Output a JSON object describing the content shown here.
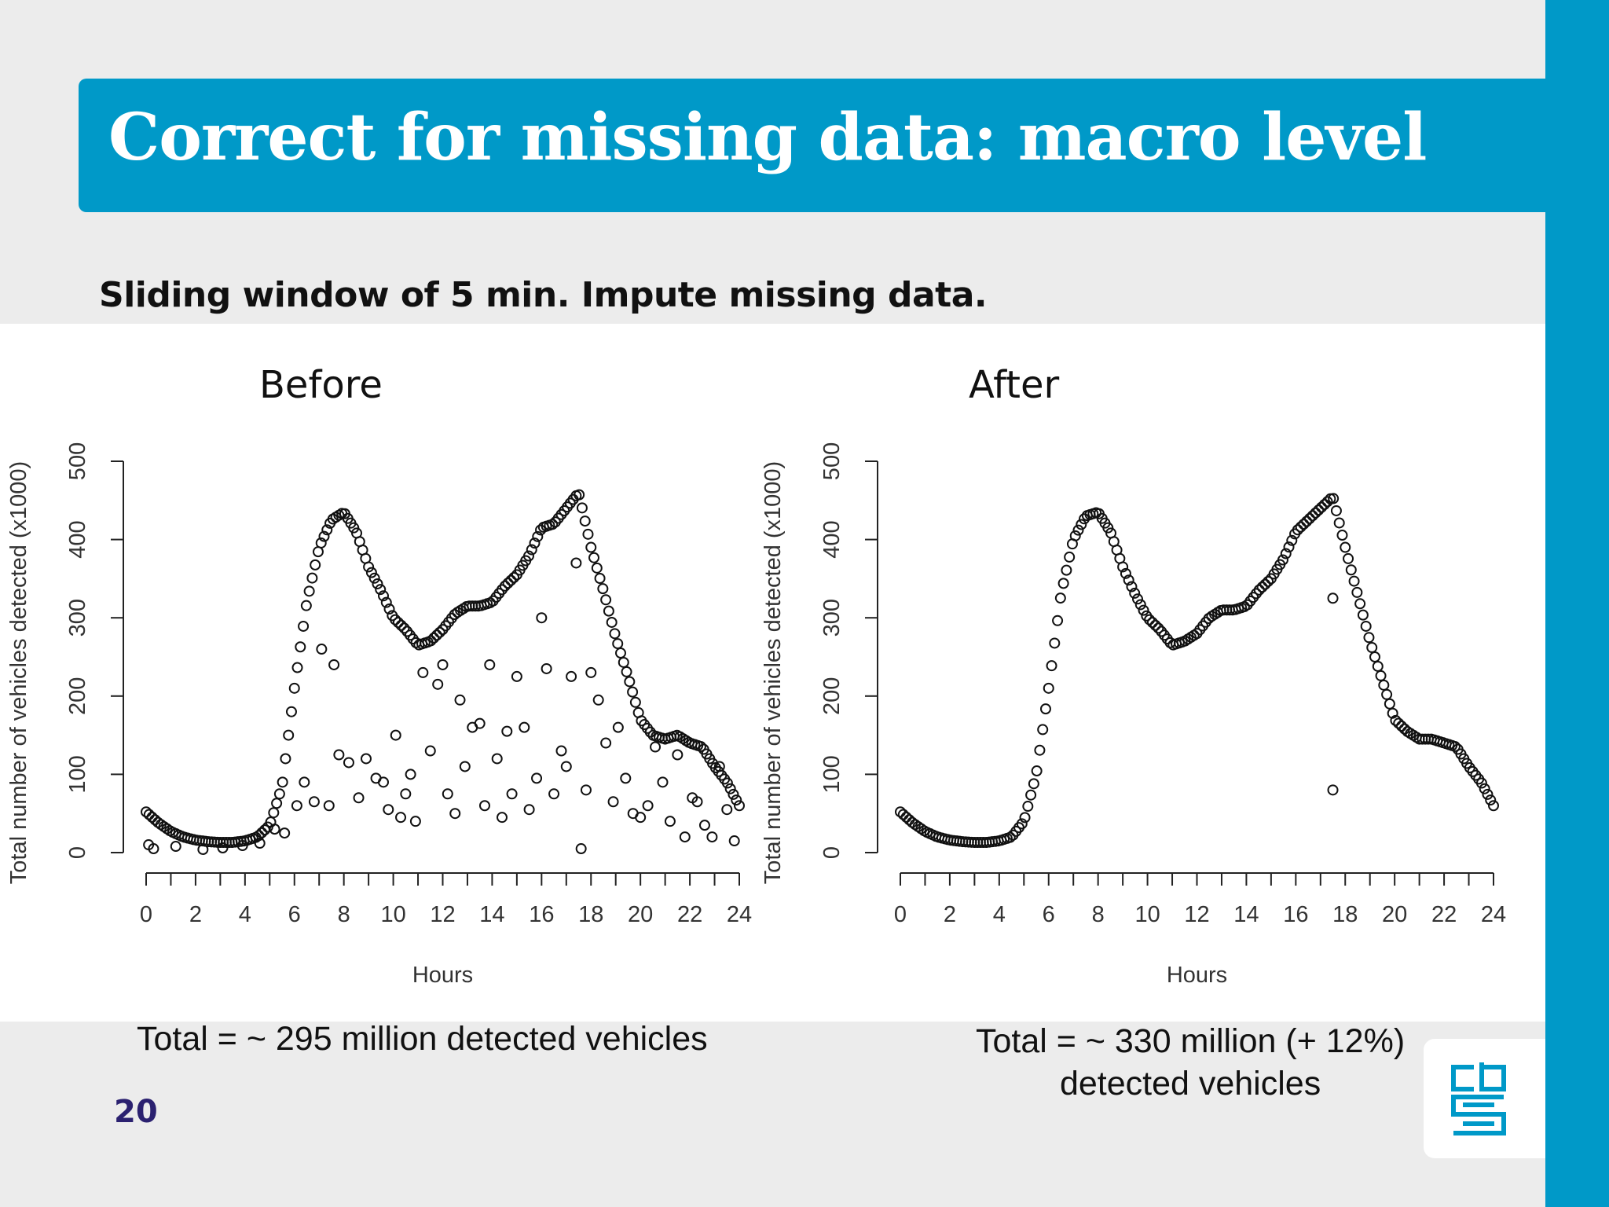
{
  "title": "Correct for missing data: macro level",
  "subtitle": "Sliding window of 5 min. Impute missing data.",
  "page_number": "20",
  "captions": {
    "before": "Total = ~ 295 million detected vehicles",
    "after_line1": "Total = ~ 330 million (+ 12%)",
    "after_line2": "detected vehicles"
  },
  "colors": {
    "accent": "#0099c8",
    "page_number": "#2b2170",
    "background": "#ececec"
  },
  "logo": {
    "icon": "cbs-logo-icon"
  },
  "chart_data": [
    {
      "type": "scatter",
      "title": "Before",
      "xlabel": "Hours",
      "ylabel": "Total number of vehicles detected (x1000)",
      "xlim": [
        0,
        24
      ],
      "ylim": [
        0,
        500
      ],
      "xticks_labeled": [
        0,
        2,
        4,
        6,
        8,
        10,
        12,
        14,
        16,
        18,
        20,
        22,
        24
      ],
      "xticks_minor_step": 1,
      "yticks": [
        0,
        100,
        200,
        300,
        400,
        500
      ],
      "grid": false,
      "series": [
        {
          "x": [
            0,
            0.5,
            1,
            1.5,
            2,
            2.5,
            3,
            3.5,
            4,
            4.5,
            5,
            5.5,
            6,
            6.5,
            7,
            7.5,
            8,
            8.5,
            9,
            9.5,
            10,
            10.5,
            11,
            11.5,
            12,
            12.5,
            13,
            13.5,
            14,
            14.5,
            15,
            15.5,
            16,
            16.5,
            17,
            17.5,
            18,
            18.5,
            19,
            19.5,
            20,
            20.5,
            21,
            21.5,
            22,
            22.5,
            23,
            23.5,
            24
          ],
          "y": [
            52,
            38,
            27,
            20,
            16,
            14,
            13,
            13,
            15,
            20,
            35,
            85,
            210,
            320,
            390,
            425,
            435,
            410,
            365,
            335,
            300,
            285,
            265,
            270,
            285,
            305,
            315,
            315,
            320,
            340,
            355,
            380,
            415,
            420,
            440,
            460,
            390,
            335,
            275,
            225,
            170,
            150,
            145,
            150,
            140,
            135,
            110,
            90,
            60
          ]
        },
        {
          "name": "scattered low points",
          "x": [
            0.1,
            0.3,
            1.2,
            2.3,
            3.1,
            3.9,
            4.6,
            5.2,
            5.6,
            6.1,
            6.4,
            6.8,
            7.1,
            7.4,
            7.6,
            7.8,
            8.2,
            8.6,
            8.9,
            9.3,
            9.6,
            9.8,
            10.1,
            10.3,
            10.5,
            10.7,
            10.9,
            11.2,
            11.5,
            11.8,
            12.0,
            12.2,
            12.5,
            12.7,
            12.9,
            13.2,
            13.5,
            13.7,
            13.9,
            14.2,
            14.4,
            14.6,
            14.8,
            15.0,
            15.3,
            15.5,
            15.8,
            16.0,
            16.2,
            16.5,
            16.8,
            17.0,
            17.2,
            17.4,
            17.6,
            17.8,
            18.0,
            18.3,
            18.6,
            18.9,
            19.1,
            19.4,
            19.7,
            20.0,
            20.3,
            20.6,
            20.9,
            21.2,
            21.5,
            21.8,
            22.1,
            22.3,
            22.6,
            22.9,
            23.2,
            23.5,
            23.8
          ],
          "y": [
            10,
            5,
            8,
            4,
            6,
            9,
            12,
            30,
            25,
            60,
            90,
            65,
            260,
            60,
            240,
            125,
            115,
            70,
            120,
            95,
            90,
            55,
            150,
            45,
            75,
            100,
            40,
            230,
            130,
            215,
            240,
            75,
            50,
            195,
            110,
            160,
            165,
            60,
            240,
            120,
            45,
            155,
            75,
            225,
            160,
            55,
            95,
            300,
            235,
            75,
            130,
            110,
            225,
            370,
            5,
            80,
            230,
            195,
            140,
            65,
            160,
            95,
            50,
            45,
            60,
            135,
            90,
            40,
            125,
            20,
            70,
            65,
            35,
            20,
            110,
            55,
            15
          ]
        }
      ]
    },
    {
      "type": "scatter",
      "title": "After",
      "xlabel": "Hours",
      "ylabel": "Total number of vehicles detected (x1000)",
      "xlim": [
        0,
        24
      ],
      "ylim": [
        0,
        500
      ],
      "xticks_labeled": [
        0,
        2,
        4,
        6,
        8,
        10,
        12,
        14,
        16,
        18,
        20,
        22,
        24
      ],
      "xticks_minor_step": 1,
      "yticks": [
        0,
        100,
        200,
        300,
        400,
        500
      ],
      "grid": false,
      "series": [
        {
          "x": [
            0,
            0.5,
            1,
            1.5,
            2,
            2.5,
            3,
            3.5,
            4,
            4.5,
            5,
            5.5,
            6,
            6.5,
            7,
            7.5,
            8,
            8.5,
            9,
            9.5,
            10,
            10.5,
            11,
            11.5,
            12,
            12.5,
            13,
            13.5,
            14,
            14.5,
            15,
            15.5,
            16,
            16.5,
            17,
            17.5,
            18,
            18.5,
            19,
            19.5,
            20,
            20.5,
            21,
            21.5,
            22,
            22.5,
            23,
            23.5,
            24
          ],
          "y": [
            52,
            38,
            27,
            20,
            16,
            14,
            13,
            13,
            15,
            20,
            40,
            100,
            210,
            330,
            400,
            430,
            435,
            410,
            365,
            330,
            300,
            285,
            265,
            270,
            280,
            300,
            310,
            310,
            315,
            335,
            350,
            375,
            410,
            425,
            440,
            455,
            390,
            330,
            270,
            220,
            170,
            155,
            145,
            145,
            140,
            135,
            110,
            90,
            60
          ]
        },
        {
          "name": "outliers",
          "x": [
            17.5,
            17.5
          ],
          "y": [
            80,
            325
          ]
        }
      ]
    }
  ]
}
